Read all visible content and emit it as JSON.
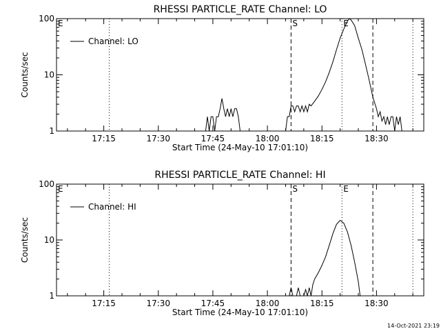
{
  "footer_timestamp": "14-Oct-2021 23:19",
  "chart_data": [
    {
      "type": "line",
      "title": "RHESSI PARTICLE_RATE Channel: LO",
      "xlabel": "Start Time (24-May-10 17:01:10)",
      "ylabel": "Counts/sec",
      "y_scale": "log",
      "ylim": [
        1,
        100
      ],
      "xlim": [
        "17:02",
        "18:43"
      ],
      "x_tick_labels": [
        "17:15",
        "17:30",
        "17:45",
        "18:00",
        "18:15",
        "18:30"
      ],
      "y_tick_labels": [
        "1",
        "10",
        "100"
      ],
      "grid": false,
      "legend": {
        "position": "top-left",
        "entries": [
          "Channel: LO"
        ]
      },
      "markers": [
        {
          "label": "E",
          "time": "17:02",
          "style": "none"
        },
        {
          "label": "S",
          "time": "18:06.5",
          "style": "dashed"
        },
        {
          "label": "E",
          "time": "18:20.5",
          "style": "dotted"
        }
      ],
      "vlines": [
        {
          "time": "17:16.5",
          "style": "dotted"
        },
        {
          "time": "18:06.5",
          "style": "dashed"
        },
        {
          "time": "18:20.5",
          "style": "dotted"
        },
        {
          "time": "18:29",
          "style": "dashed"
        },
        {
          "time": "18:40",
          "style": "dotted"
        }
      ],
      "series": [
        {
          "name": "Channel: LO",
          "points": [
            [
              "17:43",
              1
            ],
            [
              "17:43.5",
              1.8
            ],
            [
              "17:44",
              1
            ],
            [
              "17:44.5",
              1.8
            ],
            [
              "17:45",
              1.8
            ],
            [
              "17:45.5",
              1
            ],
            [
              "17:46",
              1.8
            ],
            [
              "17:46.5",
              1.8
            ],
            [
              "17:47",
              2.5
            ],
            [
              "17:47.5",
              3.8
            ],
            [
              "17:48",
              2.5
            ],
            [
              "17:48.5",
              1.8
            ],
            [
              "17:49",
              2.5
            ],
            [
              "17:49.5",
              1.8
            ],
            [
              "17:50",
              2.5
            ],
            [
              "17:50.5",
              1.8
            ],
            [
              "17:51",
              2.5
            ],
            [
              "17:51.5",
              2.5
            ],
            [
              "17:52",
              1.8
            ],
            [
              "17:52.5",
              1
            ],
            [
              "18:05",
              1
            ],
            [
              "18:05.5",
              1.8
            ],
            [
              "18:06",
              1.8
            ],
            [
              "18:06.5",
              2.8
            ],
            [
              "18:07",
              2.8
            ],
            [
              "18:07.5",
              2.2
            ],
            [
              "18:08",
              2.8
            ],
            [
              "18:08.5",
              2.8
            ],
            [
              "18:09",
              2.2
            ],
            [
              "18:09.5",
              2.8
            ],
            [
              "18:10",
              2.2
            ],
            [
              "18:10.5",
              2.8
            ],
            [
              "18:11",
              2.2
            ],
            [
              "18:11.5",
              3
            ],
            [
              "18:12",
              2.8
            ],
            [
              "18:13",
              3.4
            ],
            [
              "18:14",
              4.2
            ],
            [
              "18:15",
              5.5
            ],
            [
              "18:16",
              7.5
            ],
            [
              "18:17",
              11
            ],
            [
              "18:18",
              17
            ],
            [
              "18:19",
              28
            ],
            [
              "18:20",
              45
            ],
            [
              "18:21",
              65
            ],
            [
              "18:22",
              90
            ],
            [
              "18:22.5",
              100
            ],
            [
              "18:23",
              95
            ],
            [
              "18:24",
              75
            ],
            [
              "18:25",
              45
            ],
            [
              "18:26",
              28
            ],
            [
              "18:27",
              15
            ],
            [
              "18:28",
              8
            ],
            [
              "18:29",
              4
            ],
            [
              "18:30",
              2.5
            ],
            [
              "18:30.5",
              1.8
            ],
            [
              "18:31",
              2.2
            ],
            [
              "18:31.5",
              1.5
            ],
            [
              "18:32",
              1.8
            ],
            [
              "18:32.5",
              1.3
            ],
            [
              "18:33",
              1.8
            ],
            [
              "18:33.5",
              1.3
            ],
            [
              "18:34",
              1.8
            ],
            [
              "18:34.5",
              1.8
            ],
            [
              "18:35",
              1
            ],
            [
              "18:35.5",
              1.8
            ],
            [
              "18:36",
              1.3
            ],
            [
              "18:36.5",
              1.8
            ],
            [
              "18:37",
              1
            ]
          ]
        }
      ]
    },
    {
      "type": "line",
      "title": "RHESSI PARTICLE_RATE Channel: HI",
      "xlabel": "Start Time (24-May-10 17:01:10)",
      "ylabel": "Counts/sec",
      "y_scale": "log",
      "ylim": [
        1,
        100
      ],
      "xlim": [
        "17:02",
        "18:43"
      ],
      "x_tick_labels": [
        "17:15",
        "17:30",
        "17:45",
        "18:00",
        "18:15",
        "18:30"
      ],
      "y_tick_labels": [
        "1",
        "10",
        "100"
      ],
      "grid": false,
      "legend": {
        "position": "top-left",
        "entries": [
          "Channel: HI"
        ]
      },
      "markers": [
        {
          "label": "E",
          "time": "17:02",
          "style": "none"
        },
        {
          "label": "S",
          "time": "18:06.5",
          "style": "dashed"
        },
        {
          "label": "E",
          "time": "18:20.5",
          "style": "dotted"
        }
      ],
      "vlines": [
        {
          "time": "17:16.5",
          "style": "dotted"
        },
        {
          "time": "18:06.5",
          "style": "dashed"
        },
        {
          "time": "18:20.5",
          "style": "dotted"
        },
        {
          "time": "18:29",
          "style": "dashed"
        },
        {
          "time": "18:40",
          "style": "dotted"
        }
      ],
      "series": [
        {
          "name": "Channel: HI",
          "points": [
            [
              "18:06",
              1
            ],
            [
              "18:06.5",
              1.4
            ],
            [
              "18:07",
              1
            ],
            [
              "18:08",
              1
            ],
            [
              "18:08.5",
              1.4
            ],
            [
              "18:09",
              1
            ],
            [
              "18:10",
              1
            ],
            [
              "18:10.5",
              1.3
            ],
            [
              "18:11",
              1
            ],
            [
              "18:11.5",
              1.4
            ],
            [
              "18:12",
              1
            ],
            [
              "18:12.5",
              1.6
            ],
            [
              "18:13",
              2
            ],
            [
              "18:14",
              2.6
            ],
            [
              "18:15",
              3.5
            ],
            [
              "18:16",
              5
            ],
            [
              "18:17",
              8
            ],
            [
              "18:18",
              13
            ],
            [
              "18:19",
              19
            ],
            [
              "18:20",
              22.5
            ],
            [
              "18:21",
              20
            ],
            [
              "18:22",
              14
            ],
            [
              "18:23",
              8
            ],
            [
              "18:24",
              4
            ],
            [
              "18:25",
              1.8
            ],
            [
              "18:25.5",
              1
            ]
          ]
        }
      ]
    }
  ]
}
